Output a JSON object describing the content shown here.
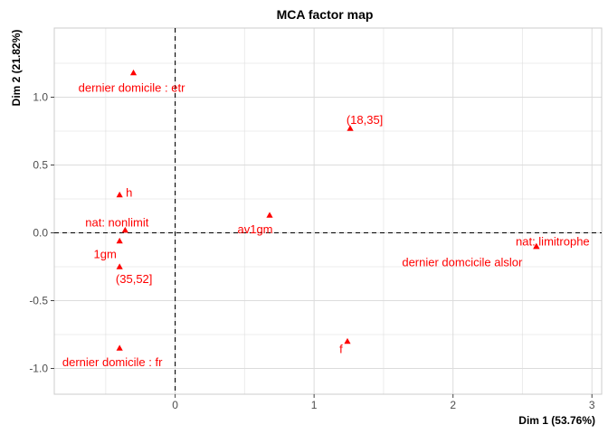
{
  "chart_data": {
    "type": "scatter",
    "title": "MCA factor map",
    "xlabel": "Dim 1 (53.76%)",
    "ylabel": "Dim 2 (21.82%)",
    "xlim": [
      -0.87,
      3.07
    ],
    "ylim": [
      -1.19,
      1.51
    ],
    "xticks": [
      0,
      1,
      2,
      3
    ],
    "xtick_labels": [
      "0",
      "1",
      "2",
      "3"
    ],
    "yticks": [
      -1.0,
      -0.5,
      0.0,
      0.5,
      1.0
    ],
    "ytick_labels": [
      "-1.0",
      "-0.5",
      "0.0",
      "0.5",
      "1.0"
    ],
    "grid": true,
    "reference_lines": {
      "x": 0,
      "y": 0,
      "style": "dashed"
    },
    "marker": "triangle",
    "color": "#ff0000",
    "points": [
      {
        "label": "dernier domicile : etr",
        "x": -0.3,
        "y": 1.18
      },
      {
        "label": "(18,35]",
        "x": 1.26,
        "y": 0.77
      },
      {
        "label": "h",
        "x": -0.4,
        "y": 0.28
      },
      {
        "label": "nat: nonlimit",
        "x": -0.36,
        "y": 0.02
      },
      {
        "label": "av1gm",
        "x": 0.68,
        "y": 0.13
      },
      {
        "label": "1gm",
        "x": -0.4,
        "y": -0.06
      },
      {
        "label": "(35,52]",
        "x": -0.4,
        "y": -0.25
      },
      {
        "label": "nat: limitrophe",
        "x": 2.6,
        "y": -0.1
      },
      {
        "label": "dernier domcicile alslor",
        "x": 2.6,
        "y": -0.1
      },
      {
        "label": "f",
        "x": 1.24,
        "y": -0.8
      },
      {
        "label": "dernier domicile : fr",
        "x": -0.4,
        "y": -0.85
      }
    ]
  }
}
